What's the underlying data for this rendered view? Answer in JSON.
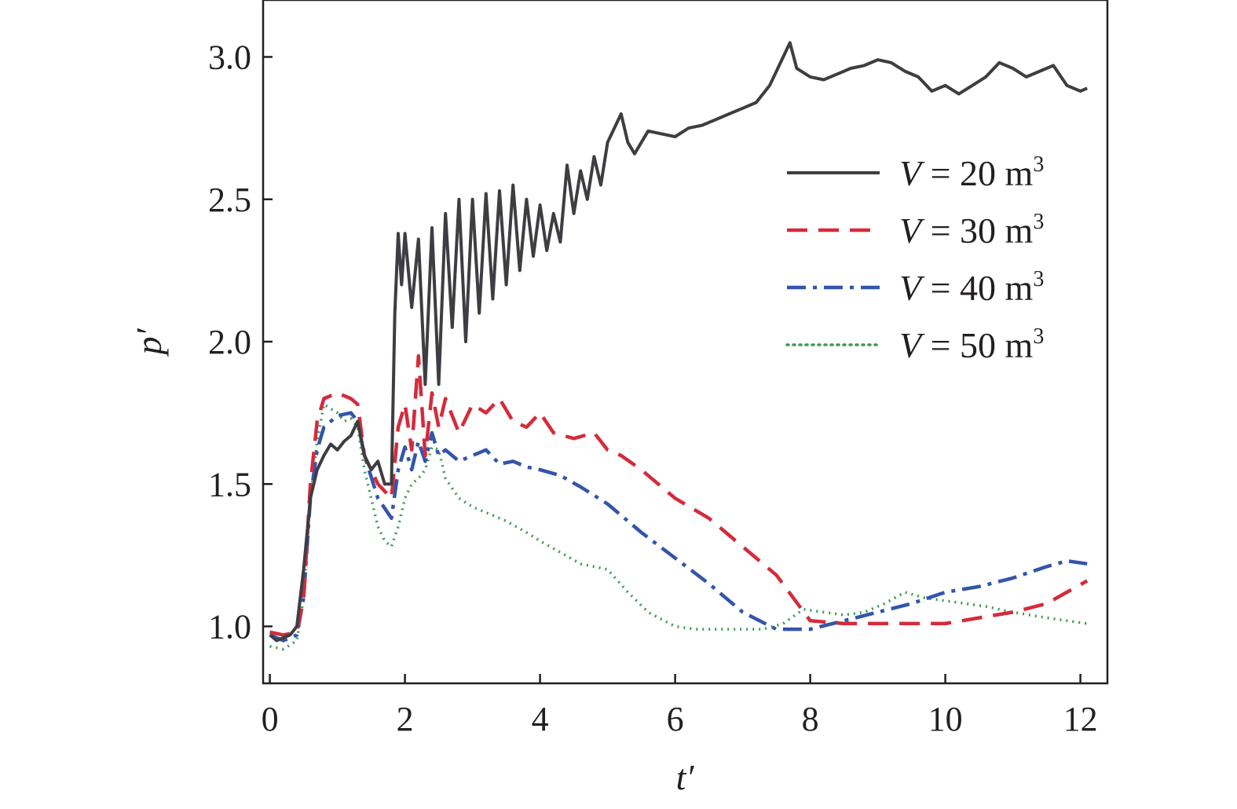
{
  "chart_data": {
    "type": "line",
    "title": "",
    "xlabel": "t′",
    "ylabel": "p′",
    "xlim": [
      -0.1,
      12.4
    ],
    "ylim": [
      0.8,
      3.2
    ],
    "xticks": [
      0,
      2,
      4,
      6,
      8,
      10,
      12
    ],
    "xtick_labels": [
      "0",
      "2",
      "4",
      "6",
      "8",
      "10",
      "12"
    ],
    "yticks": [
      1.0,
      1.5,
      2.0,
      2.5,
      3.0
    ],
    "ytick_labels": [
      "1.0",
      "1.5",
      "2.0",
      "2.5",
      "3.0"
    ],
    "grid": false,
    "legend_position": "top-right",
    "series": [
      {
        "name": "V = 20 m³",
        "legend_var": "V",
        "legend_value": " = 20 m",
        "legend_exp": "3",
        "color": "#3d3d42",
        "dash": "solid",
        "x": [
          0.0,
          0.1,
          0.2,
          0.3,
          0.4,
          0.5,
          0.6,
          0.7,
          0.8,
          0.9,
          1.0,
          1.1,
          1.2,
          1.3,
          1.4,
          1.5,
          1.6,
          1.7,
          1.8,
          1.85,
          1.9,
          1.95,
          2.0,
          2.1,
          2.2,
          2.3,
          2.4,
          2.5,
          2.6,
          2.7,
          2.8,
          2.9,
          3.0,
          3.1,
          3.2,
          3.3,
          3.4,
          3.5,
          3.6,
          3.7,
          3.8,
          3.9,
          4.0,
          4.1,
          4.2,
          4.3,
          4.4,
          4.5,
          4.6,
          4.7,
          4.8,
          4.9,
          5.0,
          5.1,
          5.2,
          5.3,
          5.4,
          5.5,
          5.6,
          5.8,
          6.0,
          6.2,
          6.4,
          6.6,
          6.8,
          7.0,
          7.2,
          7.4,
          7.6,
          7.7,
          7.8,
          8.0,
          8.2,
          8.4,
          8.6,
          8.8,
          9.0,
          9.2,
          9.4,
          9.6,
          9.8,
          10.0,
          10.2,
          10.4,
          10.6,
          10.8,
          11.0,
          11.2,
          11.4,
          11.6,
          11.8,
          12.0,
          12.1
        ],
        "y": [
          0.97,
          0.95,
          0.96,
          0.97,
          1.0,
          1.2,
          1.45,
          1.55,
          1.6,
          1.64,
          1.62,
          1.65,
          1.67,
          1.72,
          1.6,
          1.55,
          1.58,
          1.5,
          1.5,
          2.1,
          2.38,
          2.2,
          2.38,
          2.12,
          2.36,
          1.85,
          2.4,
          1.85,
          2.45,
          2.05,
          2.5,
          2.0,
          2.5,
          2.1,
          2.52,
          2.15,
          2.53,
          2.2,
          2.55,
          2.25,
          2.5,
          2.3,
          2.48,
          2.32,
          2.45,
          2.35,
          2.62,
          2.45,
          2.6,
          2.5,
          2.65,
          2.55,
          2.7,
          2.75,
          2.8,
          2.7,
          2.66,
          2.7,
          2.74,
          2.73,
          2.72,
          2.75,
          2.76,
          2.78,
          2.8,
          2.82,
          2.84,
          2.9,
          3.0,
          3.05,
          2.96,
          2.93,
          2.92,
          2.94,
          2.96,
          2.97,
          2.99,
          2.98,
          2.95,
          2.93,
          2.88,
          2.9,
          2.87,
          2.9,
          2.93,
          2.98,
          2.96,
          2.93,
          2.95,
          2.97,
          2.9,
          2.88,
          2.89
        ]
      },
      {
        "name": "V = 30 m³",
        "legend_var": "V",
        "legend_value": " = 30 m",
        "legend_exp": "3",
        "color": "#d42b3b",
        "dash": "long-dash",
        "x": [
          0.0,
          0.2,
          0.4,
          0.5,
          0.6,
          0.7,
          0.8,
          1.0,
          1.2,
          1.3,
          1.4,
          1.6,
          1.8,
          1.9,
          2.0,
          2.1,
          2.2,
          2.3,
          2.4,
          2.5,
          2.6,
          2.8,
          3.0,
          3.2,
          3.4,
          3.6,
          3.8,
          4.0,
          4.2,
          4.5,
          4.8,
          5.0,
          5.2,
          5.5,
          6.0,
          6.5,
          7.0,
          7.5,
          8.0,
          8.5,
          9.0,
          9.5,
          10.0,
          10.5,
          11.0,
          11.5,
          12.1
        ],
        "y": [
          0.98,
          0.97,
          0.98,
          1.1,
          1.5,
          1.72,
          1.8,
          1.82,
          1.8,
          1.78,
          1.6,
          1.5,
          1.45,
          1.7,
          1.78,
          1.62,
          1.95,
          1.6,
          1.82,
          1.7,
          1.8,
          1.68,
          1.78,
          1.75,
          1.8,
          1.72,
          1.7,
          1.75,
          1.68,
          1.66,
          1.68,
          1.62,
          1.6,
          1.55,
          1.45,
          1.38,
          1.28,
          1.18,
          1.02,
          1.01,
          1.01,
          1.01,
          1.01,
          1.03,
          1.05,
          1.08,
          1.16
        ]
      },
      {
        "name": "V = 40 m³",
        "legend_var": "V",
        "legend_value": " = 40 m",
        "legend_exp": "3",
        "color": "#3355aa",
        "dash": "dash-dot",
        "x": [
          0.0,
          0.2,
          0.4,
          0.5,
          0.6,
          0.7,
          0.8,
          1.0,
          1.2,
          1.3,
          1.4,
          1.6,
          1.8,
          1.9,
          2.0,
          2.1,
          2.2,
          2.3,
          2.4,
          2.5,
          2.6,
          2.8,
          3.0,
          3.2,
          3.4,
          3.6,
          3.8,
          4.0,
          4.3,
          4.6,
          5.0,
          5.5,
          6.0,
          6.5,
          7.0,
          7.5,
          8.0,
          8.5,
          9.0,
          9.5,
          10.0,
          10.5,
          11.0,
          11.5,
          11.8,
          12.1
        ],
        "y": [
          0.97,
          0.95,
          0.97,
          1.1,
          1.45,
          1.62,
          1.7,
          1.74,
          1.75,
          1.72,
          1.6,
          1.45,
          1.38,
          1.55,
          1.63,
          1.55,
          1.65,
          1.58,
          1.68,
          1.6,
          1.62,
          1.58,
          1.6,
          1.62,
          1.57,
          1.58,
          1.56,
          1.55,
          1.53,
          1.49,
          1.43,
          1.33,
          1.24,
          1.15,
          1.05,
          0.99,
          0.99,
          1.02,
          1.05,
          1.08,
          1.12,
          1.14,
          1.17,
          1.21,
          1.23,
          1.22
        ]
      },
      {
        "name": "V = 50 m³",
        "legend_var": "V",
        "legend_value": " = 50 m",
        "legend_exp": "3",
        "color": "#3a9a52",
        "dash": "dotted",
        "x": [
          0.0,
          0.2,
          0.4,
          0.5,
          0.6,
          0.7,
          0.8,
          1.0,
          1.1,
          1.2,
          1.3,
          1.4,
          1.5,
          1.6,
          1.7,
          1.8,
          1.9,
          2.0,
          2.1,
          2.2,
          2.3,
          2.4,
          2.5,
          2.6,
          2.8,
          3.0,
          3.2,
          3.5,
          3.8,
          4.0,
          4.3,
          4.6,
          5.0,
          5.3,
          5.6,
          6.0,
          6.3,
          6.6,
          7.0,
          7.3,
          7.6,
          7.9,
          8.2,
          8.5,
          8.8,
          9.1,
          9.4,
          9.7,
          10.0,
          10.3,
          10.6,
          11.0,
          11.5,
          12.1
        ],
        "y": [
          0.93,
          0.92,
          0.95,
          1.1,
          1.45,
          1.65,
          1.78,
          1.75,
          1.72,
          1.73,
          1.7,
          1.55,
          1.45,
          1.35,
          1.3,
          1.28,
          1.35,
          1.45,
          1.5,
          1.52,
          1.55,
          1.63,
          1.62,
          1.52,
          1.45,
          1.42,
          1.4,
          1.37,
          1.33,
          1.3,
          1.26,
          1.22,
          1.2,
          1.12,
          1.05,
          1.0,
          0.99,
          0.99,
          0.99,
          0.99,
          1.01,
          1.06,
          1.05,
          1.04,
          1.05,
          1.08,
          1.12,
          1.1,
          1.09,
          1.08,
          1.07,
          1.05,
          1.03,
          1.01
        ]
      }
    ]
  }
}
